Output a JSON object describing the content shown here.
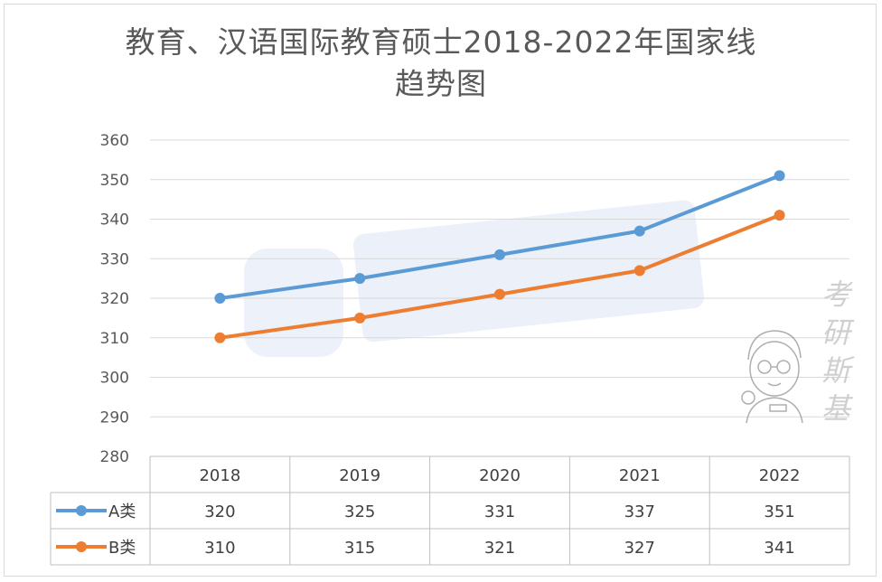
{
  "chart_data": {
    "type": "line",
    "title_line1": "教育、汉语国际教育硕士2018-2022年国家线",
    "title_line2": "趋势图",
    "categories": [
      "2018",
      "2019",
      "2020",
      "2021",
      "2022"
    ],
    "series": [
      {
        "name": "A类",
        "values": [
          320,
          325,
          331,
          337,
          351
        ],
        "color": "#5b9bd5"
      },
      {
        "name": "B类",
        "values": [
          310,
          315,
          321,
          327,
          341
        ],
        "color": "#ed7d31"
      }
    ],
    "ylim": [
      280,
      360
    ],
    "yticks": [
      280,
      290,
      300,
      310,
      320,
      330,
      340,
      350,
      360
    ],
    "grid": true,
    "legend": "data-table"
  },
  "watermark": {
    "side_text": [
      "考",
      "研",
      "斯",
      "基"
    ]
  }
}
